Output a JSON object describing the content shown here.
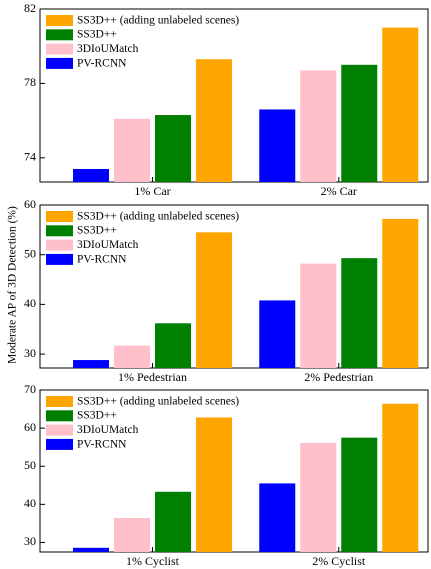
{
  "figure": {
    "ylabel": "Moderate AP of 3D Detection (%)"
  },
  "chart_data": [
    {
      "type": "bar",
      "categories": [
        "1% Car",
        "2% Car"
      ],
      "ylim": [
        72.7,
        82
      ],
      "yticks": [
        74,
        78,
        82
      ],
      "grid": false,
      "legend": "top-left",
      "series": [
        {
          "name": "PV-RCNN",
          "color": "#0000ff",
          "values": [
            73.4,
            76.6
          ]
        },
        {
          "name": "3DIoUMatch",
          "color": "#ffc0cb",
          "values": [
            76.1,
            78.7
          ]
        },
        {
          "name": "SS3D++",
          "color": "#008000",
          "values": [
            76.3,
            79.0
          ]
        },
        {
          "name": "SS3D++ (adding unlabeled scenes)",
          "color": "#ffa500",
          "values": [
            79.3,
            81.0
          ]
        }
      ]
    },
    {
      "type": "bar",
      "categories": [
        "1% Pedestrian",
        "2% Pedestrian"
      ],
      "ylim": [
        27.2,
        60
      ],
      "yticks": [
        30,
        40,
        50,
        60
      ],
      "grid": false,
      "legend": "top-left",
      "series": [
        {
          "name": "PV-RCNN",
          "color": "#0000ff",
          "values": [
            28.8,
            40.8
          ]
        },
        {
          "name": "3DIoUMatch",
          "color": "#ffc0cb",
          "values": [
            31.7,
            48.2
          ]
        },
        {
          "name": "SS3D++",
          "color": "#008000",
          "values": [
            36.2,
            49.3
          ]
        },
        {
          "name": "SS3D++ (adding unlabeled scenes)",
          "color": "#ffa500",
          "values": [
            54.5,
            57.2
          ]
        }
      ]
    },
    {
      "type": "bar",
      "categories": [
        "1% Cyclist",
        "2% Cyclist"
      ],
      "ylim": [
        27.5,
        70
      ],
      "yticks": [
        30,
        40,
        50,
        60,
        70
      ],
      "grid": false,
      "legend": "top-left",
      "series": [
        {
          "name": "PV-RCNN",
          "color": "#0000ff",
          "values": [
            28.6,
            45.5
          ]
        },
        {
          "name": "3DIoUMatch",
          "color": "#ffc0cb",
          "values": [
            36.4,
            56.1
          ]
        },
        {
          "name": "SS3D++",
          "color": "#008000",
          "values": [
            43.3,
            57.5
          ]
        },
        {
          "name": "SS3D++ (adding unlabeled scenes)",
          "color": "#ffa500",
          "values": [
            62.8,
            66.4
          ]
        }
      ]
    }
  ]
}
